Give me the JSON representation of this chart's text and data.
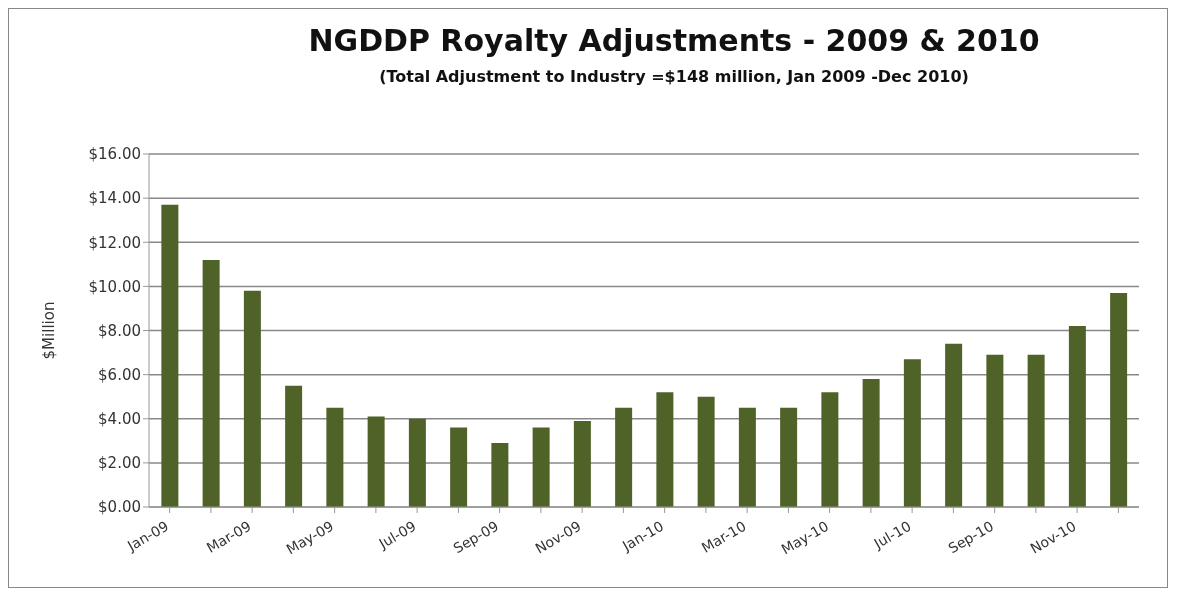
{
  "chart_data": {
    "type": "bar",
    "title": "NGDDP Royalty Adjustments - 2009 & 2010",
    "subtitle": "(Total Adjustment to Industry =$148 million,  Jan 2009 -Dec 2010)",
    "ylabel": "$Million",
    "categories": [
      "Jan-09",
      null,
      "Mar-09",
      null,
      "May-09",
      null,
      "Jul-09",
      null,
      "Sep-09",
      null,
      "Nov-09",
      null,
      "Jan-10",
      null,
      "Mar-10",
      null,
      "May-10",
      null,
      "Jul-10",
      null,
      "Sep-10",
      null,
      "Nov-10",
      null
    ],
    "values": [
      13.7,
      11.2,
      9.8,
      5.5,
      4.5,
      4.1,
      4.0,
      3.6,
      2.9,
      3.6,
      3.9,
      4.5,
      5.2,
      5.0,
      4.5,
      4.5,
      5.2,
      5.8,
      6.7,
      7.4,
      6.9,
      6.9,
      8.2,
      9.7
    ],
    "color": "#4f6228",
    "ylim": [
      0,
      16
    ],
    "yticks": [
      {
        "value": 0,
        "label": "$0.00"
      },
      {
        "value": 2,
        "label": "$2.00"
      },
      {
        "value": 4,
        "label": "$4.00"
      },
      {
        "value": 6,
        "label": "$6.00"
      },
      {
        "value": 8,
        "label": "$8.00"
      },
      {
        "value": 10,
        "label": "$10.00"
      },
      {
        "value": 12,
        "label": "$12.00"
      },
      {
        "value": 14,
        "label": "$14.00"
      },
      {
        "value": 16,
        "label": "$16.00"
      }
    ],
    "grid": "y",
    "legend": false
  }
}
